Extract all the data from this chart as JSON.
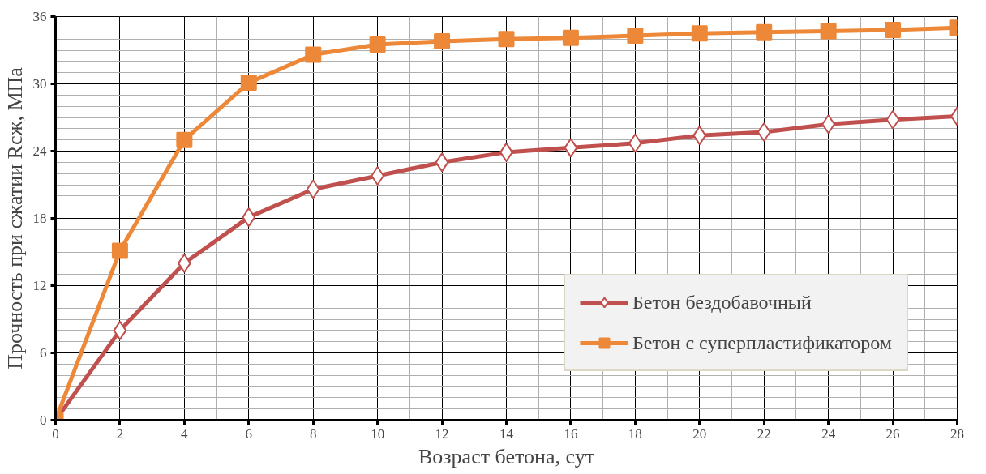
{
  "chart_data": {
    "type": "line",
    "xlabel": "Возраст бетона, сут",
    "ylabel": "Прочность при сжатии Rсж, МПа",
    "x": [
      0,
      2,
      4,
      6,
      8,
      10,
      12,
      14,
      16,
      18,
      20,
      22,
      24,
      26,
      28
    ],
    "series": [
      {
        "name": "Бетон бездобавочный",
        "color": "#c0504d",
        "marker": "diamond",
        "values": [
          0,
          8.0,
          14.0,
          18.1,
          20.6,
          21.8,
          23.0,
          23.9,
          24.3,
          24.7,
          25.4,
          25.7,
          26.4,
          26.8,
          27.1
        ]
      },
      {
        "name": "Бетон с суперпластификатором",
        "color": "#ed8838",
        "marker": "square",
        "values": [
          0,
          15.1,
          25.0,
          30.1,
          32.6,
          33.5,
          33.8,
          34.0,
          34.1,
          34.3,
          34.5,
          34.6,
          34.7,
          34.8,
          35.0
        ]
      }
    ],
    "xlim": [
      0,
      28
    ],
    "xticks": [
      0,
      2,
      4,
      6,
      8,
      10,
      12,
      14,
      16,
      18,
      20,
      22,
      24,
      26,
      28
    ],
    "ylim": [
      0,
      36
    ],
    "yticks": [
      0,
      6,
      12,
      18,
      24,
      30,
      36
    ],
    "grid": true,
    "legend": "bottom right",
    "line_style": "solid"
  }
}
